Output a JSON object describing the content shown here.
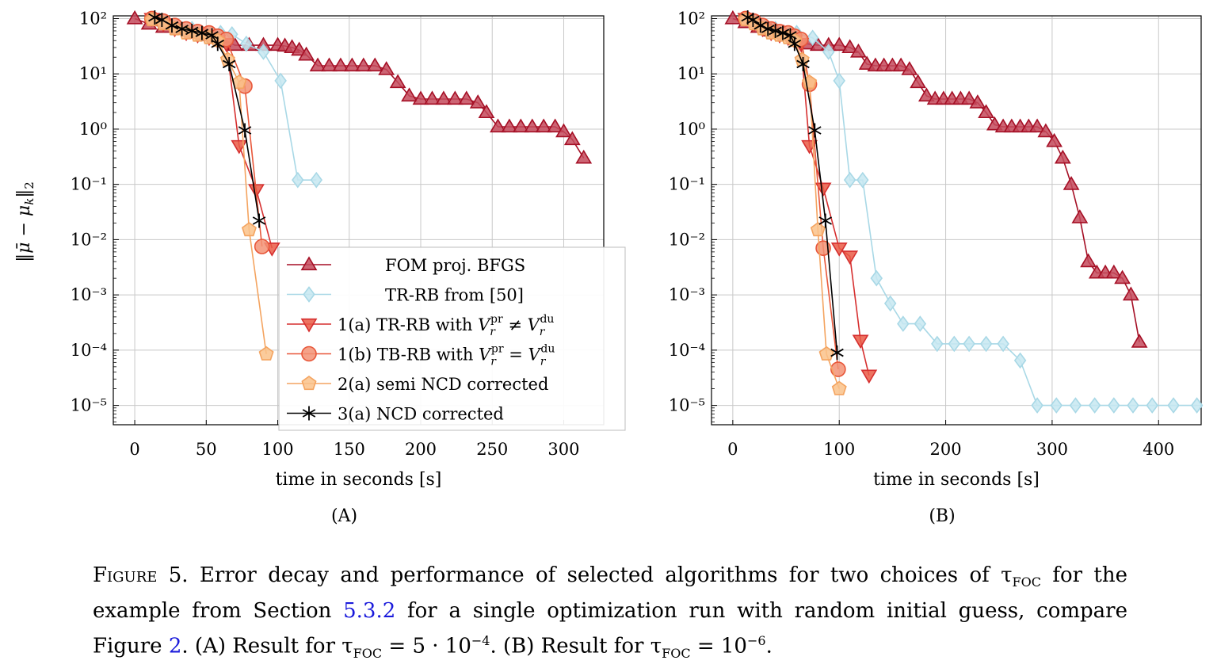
{
  "chart_data": [
    {
      "type": "line",
      "panel_label": "(A)",
      "xlabel": "time in seconds [s]",
      "ylabel": "‖μ̄ − μk‖2",
      "xlim": [
        -15,
        328
      ],
      "x_ticks": [
        0,
        50,
        100,
        150,
        200,
        250,
        300
      ],
      "yscale": "log",
      "ylim": [
        1e-05,
        100
      ],
      "y_ticks": [
        "10²",
        "10¹",
        "10⁰",
        "10⁻¹",
        "10⁻²",
        "10⁻³",
        "10⁻⁴",
        "10⁻⁵"
      ],
      "grid": true,
      "legend": "bottom-right",
      "series": [
        {
          "name": "FOM proj. BFGS",
          "color": "#a50f25",
          "fill": "#c44a5c",
          "marker": "triangle-up",
          "x": [
            0,
            10,
            20,
            30,
            40,
            50,
            60,
            70,
            80,
            90,
            100,
            105,
            110,
            115,
            120,
            128,
            136,
            144,
            152,
            160,
            168,
            176,
            184,
            192,
            200,
            208,
            216,
            224,
            232,
            240,
            246,
            254,
            262,
            270,
            278,
            286,
            294,
            300,
            306,
            314
          ],
          "y": [
            100,
            80,
            70,
            65,
            55,
            50,
            45,
            33,
            33,
            33,
            33,
            32,
            30,
            27,
            22,
            14,
            14,
            14,
            14,
            14,
            14,
            12,
            7,
            4,
            3.5,
            3.5,
            3.5,
            3.5,
            3.5,
            3,
            2,
            1.1,
            1.1,
            1.1,
            1.1,
            1.1,
            1.1,
            0.9,
            0.65,
            0.3
          ]
        },
        {
          "name": "TR-RB from [50]",
          "color": "#a8d8e6",
          "fill": "#c7e8f1",
          "marker": "diamond",
          "x": [
            20,
            40,
            60,
            68,
            78,
            90,
            102,
            114,
            127
          ],
          "y": [
            90,
            65,
            55,
            52,
            35,
            25,
            7.5,
            0.12,
            0.12
          ]
        },
        {
          "name": "1(a)  TR-RB with V_r^pr ≠ V_r^du",
          "color": "#d62f2f",
          "fill": "#ea5a45",
          "marker": "triangle-down",
          "x": [
            12,
            20,
            28,
            36,
            44,
            52,
            58,
            64,
            73,
            85,
            96
          ],
          "y": [
            100,
            80,
            65,
            55,
            50,
            45,
            40,
            35,
            0.5,
            0.08,
            0.007
          ]
        },
        {
          "name": "1(b)  TB-RB with V_r^pr = V_r^du",
          "color": "#e8573a",
          "fill": "#f39274",
          "marker": "circle",
          "x": [
            12,
            20,
            28,
            36,
            44,
            52,
            58,
            64,
            77,
            89
          ],
          "y": [
            100,
            90,
            75,
            65,
            58,
            55,
            48,
            42,
            6,
            0.0075
          ]
        },
        {
          "name": "2(a) semi NCD corrected",
          "color": "#f4a460",
          "fill": "#fac28a",
          "marker": "pentagon",
          "x": [
            12,
            20,
            28,
            36,
            44,
            52,
            58,
            65,
            73,
            80,
            92
          ],
          "y": [
            95,
            80,
            65,
            55,
            50,
            45,
            40,
            18,
            7,
            0.015,
            8.5e-05
          ]
        },
        {
          "name": "3(a) NCD corrected",
          "color": "#000000",
          "fill": "#000000",
          "marker": "star",
          "x": [
            14,
            19,
            26,
            33,
            40,
            47,
            54,
            58,
            66,
            77,
            87
          ],
          "y": [
            105,
            95,
            75,
            65,
            60,
            55,
            50,
            35,
            15,
            0.95,
            0.022
          ]
        }
      ],
      "extra_series_note": ""
    },
    {
      "type": "line",
      "panel_label": "(B)",
      "xlabel": "time in seconds [s]",
      "ylabel": "",
      "xlim": [
        -20,
        440
      ],
      "x_ticks": [
        0,
        100,
        200,
        300,
        400
      ],
      "yscale": "log",
      "ylim": [
        1e-05,
        100
      ],
      "y_ticks": [
        "10²",
        "10¹",
        "10⁰",
        "10⁻¹",
        "10⁻²",
        "10⁻³",
        "10⁻⁴",
        "10⁻⁵"
      ],
      "grid": true,
      "legend": "none",
      "series": [
        {
          "name": "FOM proj. BFGS",
          "color": "#a50f25",
          "fill": "#c44a5c",
          "marker": "triangle-up",
          "x": [
            0,
            12,
            24,
            36,
            48,
            60,
            70,
            80,
            90,
            100,
            110,
            118,
            126,
            134,
            142,
            150,
            158,
            166,
            174,
            182,
            190,
            198,
            206,
            214,
            222,
            230,
            238,
            246,
            254,
            262,
            270,
            278,
            286,
            294,
            302,
            310,
            318,
            326,
            334,
            342,
            350,
            358,
            366,
            374,
            382
          ],
          "y": [
            100,
            85,
            70,
            60,
            55,
            45,
            35,
            33,
            33,
            33,
            30,
            25,
            15,
            14,
            14,
            14,
            14,
            12,
            7,
            4,
            3.5,
            3.5,
            3.5,
            3.5,
            3.5,
            3,
            2,
            1.2,
            1.1,
            1.1,
            1.1,
            1.1,
            1.1,
            0.9,
            0.6,
            0.3,
            0.1,
            0.025,
            0.004,
            0.0025,
            0.0025,
            0.0025,
            0.002,
            0.001,
            0.00014
          ]
        },
        {
          "name": "TR-RB from [50]",
          "color": "#a8d8e6",
          "fill": "#c7e8f1",
          "marker": "diamond",
          "x": [
            20,
            40,
            60,
            75,
            90,
            100,
            110,
            122,
            135,
            148,
            160,
            176,
            192,
            208,
            222,
            238,
            254,
            270,
            286,
            304,
            322,
            340,
            358,
            376,
            394,
            414,
            436
          ],
          "y": [
            90,
            65,
            55,
            45,
            25,
            7.5,
            0.12,
            0.12,
            0.002,
            0.0007,
            0.0003,
            0.0003,
            0.00013,
            0.00013,
            0.00013,
            0.00013,
            0.00013,
            6.5e-05,
            1e-05,
            1e-05,
            1e-05,
            1e-05,
            1e-05,
            1e-05,
            1e-05,
            1e-05,
            1e-05
          ]
        },
        {
          "name": "1(a)  TR-RB with V_r^pr ≠ V_r^du",
          "color": "#d62f2f",
          "fill": "#ea5a45",
          "marker": "triangle-down",
          "x": [
            12,
            20,
            28,
            36,
            44,
            52,
            58,
            64,
            72,
            85,
            100,
            110,
            120,
            128
          ],
          "y": [
            100,
            80,
            65,
            55,
            50,
            45,
            40,
            35,
            0.5,
            0.085,
            0.007,
            0.005,
            0.00015,
            3.5e-05
          ]
        },
        {
          "name": "1(b)  TB-RB with V_r^pr = V_r^du",
          "color": "#e8573a",
          "fill": "#f39274",
          "marker": "circle",
          "x": [
            12,
            20,
            28,
            36,
            44,
            52,
            58,
            64,
            72,
            85,
            99
          ],
          "y": [
            100,
            90,
            75,
            65,
            58,
            55,
            48,
            42,
            6.5,
            0.007,
            4.5e-05
          ]
        },
        {
          "name": "2(a) semi NCD corrected",
          "color": "#f4a460",
          "fill": "#fac28a",
          "marker": "pentagon",
          "x": [
            12,
            20,
            28,
            36,
            44,
            52,
            58,
            65,
            72,
            80,
            88,
            100
          ],
          "y": [
            95,
            80,
            65,
            55,
            50,
            45,
            40,
            18,
            7,
            0.015,
            8.5e-05,
            2e-05
          ]
        },
        {
          "name": "3(a) NCD corrected",
          "color": "#000000",
          "fill": "#000000",
          "marker": "star",
          "x": [
            14,
            19,
            26,
            33,
            40,
            47,
            54,
            58,
            66,
            77,
            87,
            98
          ],
          "y": [
            105,
            95,
            75,
            65,
            60,
            55,
            50,
            35,
            15,
            0.95,
            0.022,
            9e-05
          ]
        }
      ]
    }
  ],
  "caption": {
    "figure_label": "Figure 5.",
    "line1": " Error decay and performance of selected algorithms for two choices of τ",
    "foc": "FOC",
    "line1_end": " for the",
    "line2_a": "example from Section ",
    "section_ref": "5.3.2",
    "line2_b": " for a single optimization run with random initial guess, compare",
    "line3_a": "Figure ",
    "figure_ref": "2",
    "line3_b": ". (A) Result for τ",
    "line3_c": " = 5 · 10",
    "exp1": "−4",
    "line3_d": ". (B) Result for τ",
    "line3_e": " = 10",
    "exp2": "−6",
    "line3_f": "."
  },
  "legend_labels": [
    "FOM proj. BFGS",
    "TR-RB from [50]",
    "1(a)  TR-RB with V",
    "1(b)  TB-RB with V",
    "2(a) semi NCD corrected",
    "3(a) NCD corrected"
  ]
}
